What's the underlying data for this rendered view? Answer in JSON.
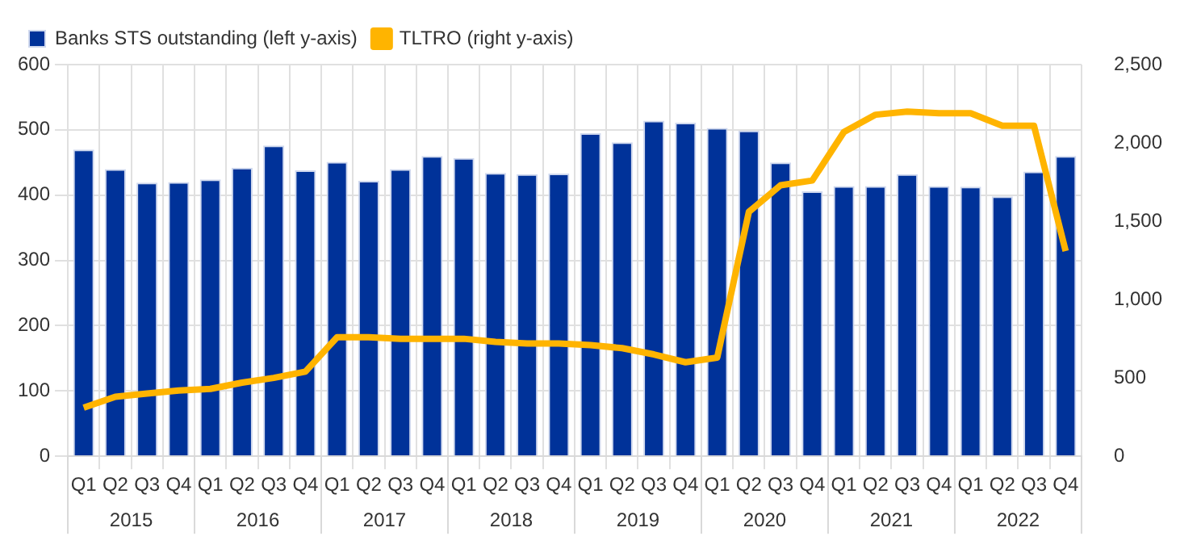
{
  "chart_data": {
    "type": "bar",
    "categories": [
      "Q1",
      "Q2",
      "Q3",
      "Q4",
      "Q1",
      "Q2",
      "Q3",
      "Q4",
      "Q1",
      "Q2",
      "Q3",
      "Q4",
      "Q1",
      "Q2",
      "Q3",
      "Q4",
      "Q1",
      "Q2",
      "Q3",
      "Q4",
      "Q1",
      "Q2",
      "Q3",
      "Q4",
      "Q1",
      "Q2",
      "Q3",
      "Q4",
      "Q1",
      "Q2",
      "Q3",
      "Q4"
    ],
    "series": [
      {
        "name": "Banks STS outstanding (left y-axis)",
        "color": "#003299",
        "values": [
          470,
          440,
          419,
          420,
          424,
          442,
          476,
          438,
          451,
          422,
          440,
          460,
          457,
          434,
          432,
          433,
          495,
          481,
          514,
          511,
          503,
          499,
          450,
          406,
          414,
          414,
          432,
          414,
          413,
          398,
          436,
          460
        ]
      },
      {
        "name": "TLTRO (right y-axis)",
        "type": "line",
        "axis": "y2",
        "color": "#ffb400",
        "values": [
          310,
          380,
          400,
          420,
          430,
          470,
          500,
          540,
          760,
          760,
          750,
          750,
          750,
          730,
          720,
          720,
          710,
          690,
          650,
          600,
          630,
          1560,
          1730,
          1760,
          2070,
          2180,
          2200,
          2190,
          2190,
          2110,
          2110,
          1310
        ]
      }
    ],
    "annotations": [
      "2015",
      "2016",
      "2017",
      "2018",
      "2019",
      "2020",
      "2021",
      "2022"
    ],
    "ylim": [
      0,
      600
    ],
    "yticks": [
      0,
      100,
      200,
      300,
      400,
      500,
      600
    ],
    "y2lim": [
      0,
      2500
    ],
    "y2ticks": [
      {
        "value": 0,
        "label": "0"
      },
      {
        "value": 500,
        "label": "500"
      },
      {
        "value": 1000,
        "label": "1,000"
      },
      {
        "value": 1500,
        "label": "1,500"
      },
      {
        "value": 2000,
        "label": "2,000"
      },
      {
        "value": 2500,
        "label": "2,500"
      }
    ],
    "grid": true,
    "legend": "top left",
    "marker": "none",
    "line_style": "solid"
  }
}
